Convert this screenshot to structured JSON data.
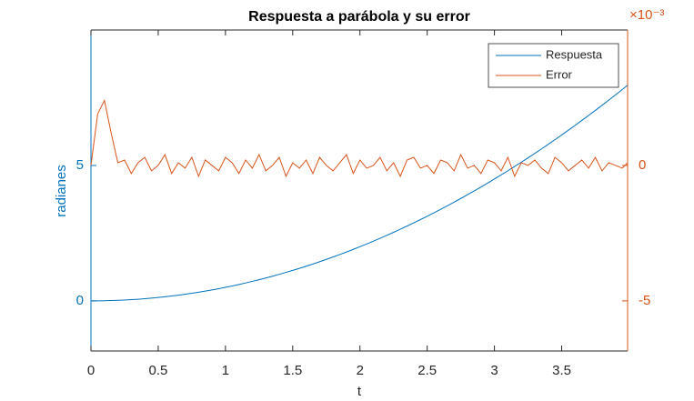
{
  "chart_data": {
    "type": "line",
    "title": "Respuesta a parábola y su error",
    "xlabel": "t",
    "ylabel": "radianes",
    "y2_exponent": "×10⁻³",
    "x": [
      0,
      0.05,
      0.1,
      0.15,
      0.2,
      0.25,
      0.3,
      0.35,
      0.4,
      0.45,
      0.5,
      0.55,
      0.6,
      0.65,
      0.7,
      0.75,
      0.8,
      0.85,
      0.9,
      0.95,
      1,
      1.05,
      1.1,
      1.15,
      1.2,
      1.25,
      1.3,
      1.35,
      1.4,
      1.45,
      1.5,
      1.55,
      1.6,
      1.65,
      1.7,
      1.75,
      1.8,
      1.85,
      1.9,
      1.95,
      2,
      2.05,
      2.1,
      2.15,
      2.2,
      2.25,
      2.3,
      2.35,
      2.4,
      2.45,
      2.5,
      2.55,
      2.6,
      2.65,
      2.7,
      2.75,
      2.8,
      2.85,
      2.9,
      2.95,
      3,
      3.05,
      3.1,
      3.15,
      3.2,
      3.25,
      3.3,
      3.35,
      3.4,
      3.45,
      3.5,
      3.55,
      3.6,
      3.65,
      3.7,
      3.75,
      3.8,
      3.85,
      3.9,
      3.95,
      3.99
    ],
    "series": [
      {
        "name": "Respuesta",
        "color": "#0072bd",
        "axis": "y",
        "values": [
          0,
          0.00125,
          0.005,
          0.01125,
          0.02,
          0.03125,
          0.045,
          0.06125,
          0.08,
          0.10125,
          0.125,
          0.15125,
          0.18,
          0.21125,
          0.245,
          0.28125,
          0.32,
          0.36125,
          0.405,
          0.45125,
          0.5,
          0.55125,
          0.605,
          0.66125,
          0.72,
          0.78125,
          0.845,
          0.91125,
          0.98,
          1.05125,
          1.125,
          1.20125,
          1.28,
          1.36125,
          1.445,
          1.53125,
          1.62,
          1.71125,
          1.805,
          1.90125,
          2.0,
          2.10125,
          2.205,
          2.31125,
          2.42,
          2.53125,
          2.645,
          2.76125,
          2.88,
          3.00125,
          3.125,
          3.25125,
          3.38,
          3.51125,
          3.645,
          3.78125,
          3.92,
          4.06125,
          4.205,
          4.35125,
          4.5,
          4.65125,
          4.805,
          4.96125,
          5.12,
          5.28125,
          5.445,
          5.61125,
          5.78,
          5.95125,
          6.125,
          6.30125,
          6.48,
          6.66125,
          6.845,
          7.03125,
          7.22,
          7.41125,
          7.605,
          7.80125,
          7.96005
        ]
      },
      {
        "name": "Error",
        "color": "#d95319",
        "axis": "y2",
        "values": [
          0,
          1.9,
          2.4,
          1.2,
          0.1,
          0.2,
          -0.3,
          0.1,
          0.3,
          -0.2,
          0.0,
          0.4,
          -0.3,
          0.1,
          -0.1,
          0.3,
          -0.4,
          0.2,
          0.0,
          -0.2,
          0.3,
          0.1,
          -0.3,
          0.2,
          -0.1,
          0.4,
          -0.2,
          0.0,
          0.3,
          -0.4,
          0.1,
          -0.1,
          0.2,
          -0.3,
          0.3,
          0.0,
          -0.2,
          0.1,
          0.4,
          -0.3,
          0.2,
          -0.1,
          0.0,
          0.3,
          -0.2,
          0.1,
          -0.4,
          0.2,
          0.3,
          -0.1,
          0.0,
          -0.3,
          0.2,
          0.1,
          -0.2,
          0.4,
          -0.1,
          0.0,
          -0.3,
          0.2,
          0.1,
          -0.2,
          0.3,
          -0.4,
          0.1,
          0.0,
          0.2,
          -0.1,
          -0.3,
          0.3,
          0.1,
          -0.2,
          0.0,
          0.2,
          -0.1,
          0.3,
          -0.2,
          0.1,
          0.0,
          -0.1,
          0.1
        ]
      }
    ],
    "xlim": [
      0,
      3.99
    ],
    "xticks": [
      0,
      0.5,
      1,
      1.5,
      2,
      2.5,
      3,
      3.5
    ],
    "ylim": [
      -1.85,
      10
    ],
    "yticks": [
      0,
      5
    ],
    "y2lim": [
      -6.85,
      5
    ],
    "y2ticks": [
      -5,
      0
    ],
    "legend": "top-right"
  }
}
